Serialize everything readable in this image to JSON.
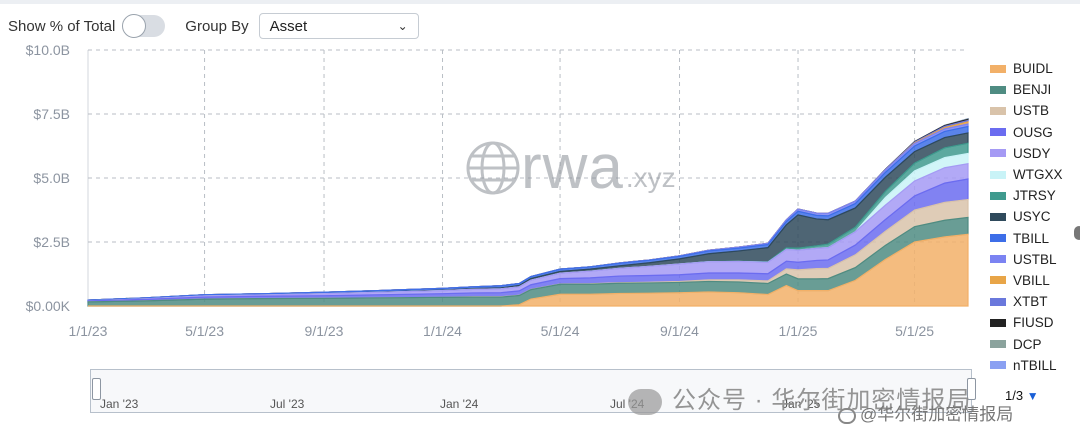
{
  "controls": {
    "show_pct_label": "Show % of Total",
    "show_pct_on": false,
    "group_by_label": "Group By",
    "group_by_value": "Asset"
  },
  "watermark": {
    "text": "rwa",
    "suffix": ".xyz"
  },
  "chart_data": {
    "type": "area",
    "stacked": true,
    "x": [
      "2023-01-01",
      "2023-03-01",
      "2023-05-01",
      "2023-07-01",
      "2023-09-01",
      "2023-11-01",
      "2024-01-01",
      "2024-02-01",
      "2024-03-01",
      "2024-03-20",
      "2024-04-01",
      "2024-05-01",
      "2024-06-01",
      "2024-07-01",
      "2024-08-01",
      "2024-09-01",
      "2024-10-01",
      "2024-11-01",
      "2024-12-01",
      "2024-12-20",
      "2025-01-01",
      "2025-01-20",
      "2025-02-01",
      "2025-03-01",
      "2025-04-01",
      "2025-05-01",
      "2025-06-01",
      "2025-06-25"
    ],
    "x_ticks": [
      "1/1/23",
      "5/1/23",
      "9/1/23",
      "1/1/24",
      "5/1/24",
      "9/1/24",
      "1/1/25",
      "5/1/25"
    ],
    "y_ticks": [
      "$0.00K",
      "$2.5B",
      "$5.0B",
      "$7.5B",
      "$10.0B"
    ],
    "ylim": [
      0,
      10000000000
    ],
    "grid": true,
    "legend_position": "right",
    "series": [
      {
        "name": "BUIDL",
        "color": "#f2b068",
        "values": [
          0,
          0,
          0,
          0,
          0,
          0,
          0,
          0,
          0,
          0.05,
          0.27,
          0.46,
          0.46,
          0.49,
          0.5,
          0.52,
          0.55,
          0.52,
          0.45,
          0.8,
          0.6,
          0.6,
          0.6,
          1.0,
          1.82,
          2.5,
          2.7,
          2.8
        ]
      },
      {
        "name": "BENJI",
        "color": "#4f8c82",
        "values": [
          0.16,
          0.2,
          0.27,
          0.29,
          0.3,
          0.32,
          0.34,
          0.35,
          0.35,
          0.36,
          0.37,
          0.39,
          0.39,
          0.4,
          0.4,
          0.4,
          0.41,
          0.42,
          0.43,
          0.45,
          0.46,
          0.46,
          0.47,
          0.5,
          0.55,
          0.6,
          0.65,
          0.66
        ]
      },
      {
        "name": "USTB",
        "color": "#d9c3aa",
        "values": [
          0,
          0,
          0,
          0,
          0,
          0,
          0,
          0.01,
          0.01,
          0.01,
          0.01,
          0.01,
          0.02,
          0.02,
          0.03,
          0.04,
          0.06,
          0.08,
          0.1,
          0.2,
          0.35,
          0.4,
          0.4,
          0.5,
          0.55,
          0.65,
          0.7,
          0.7
        ]
      },
      {
        "name": "OUSG",
        "color": "#6b6cf0",
        "values": [
          0.04,
          0.06,
          0.08,
          0.09,
          0.1,
          0.12,
          0.14,
          0.15,
          0.16,
          0.17,
          0.18,
          0.21,
          0.23,
          0.26,
          0.26,
          0.26,
          0.27,
          0.27,
          0.28,
          0.3,
          0.3,
          0.32,
          0.33,
          0.38,
          0.46,
          0.55,
          0.75,
          0.8
        ]
      },
      {
        "name": "USDY",
        "color": "#a59af4",
        "values": [
          0,
          0.02,
          0.04,
          0.05,
          0.08,
          0.1,
          0.12,
          0.14,
          0.15,
          0.16,
          0.18,
          0.21,
          0.26,
          0.3,
          0.36,
          0.42,
          0.44,
          0.45,
          0.45,
          0.46,
          0.47,
          0.47,
          0.48,
          0.52,
          0.56,
          0.58,
          0.6,
          0.6
        ]
      },
      {
        "name": "WTGXX",
        "color": "#c9f3f7",
        "values": [
          0,
          0,
          0,
          0,
          0,
          0,
          0,
          0,
          0,
          0,
          0,
          0,
          0,
          0,
          0,
          0,
          0,
          0,
          0,
          0,
          0,
          0,
          0,
          0,
          0.3,
          0.4,
          0.4,
          0.4
        ]
      },
      {
        "name": "JTRSY",
        "color": "#3f9a8e",
        "values": [
          0,
          0,
          0,
          0,
          0,
          0,
          0,
          0,
          0,
          0,
          0,
          0,
          0,
          0,
          0,
          0,
          0.01,
          0.01,
          0.02,
          0.06,
          0.08,
          0.1,
          0.14,
          0.18,
          0.24,
          0.3,
          0.38,
          0.4
        ]
      },
      {
        "name": "USYC",
        "color": "#2f4a5c",
        "values": [
          0,
          0,
          0,
          0,
          0,
          0.01,
          0.02,
          0.03,
          0.04,
          0.05,
          0.06,
          0.07,
          0.08,
          0.1,
          0.14,
          0.2,
          0.3,
          0.4,
          0.55,
          0.9,
          1.3,
          1.05,
          0.95,
          0.75,
          0.55,
          0.45,
          0.4,
          0.4
        ]
      },
      {
        "name": "TBILL",
        "color": "#3d6ee8",
        "values": [
          0.03,
          0.04,
          0.05,
          0.05,
          0.06,
          0.06,
          0.07,
          0.07,
          0.08,
          0.08,
          0.08,
          0.09,
          0.09,
          0.1,
          0.1,
          0.1,
          0.11,
          0.11,
          0.12,
          0.13,
          0.14,
          0.14,
          0.15,
          0.17,
          0.19,
          0.22,
          0.24,
          0.25
        ]
      },
      {
        "name": "USTBL",
        "color": "#7b83f2",
        "values": [
          0,
          0,
          0,
          0,
          0,
          0,
          0,
          0,
          0,
          0,
          0,
          0,
          0,
          0.01,
          0.01,
          0.02,
          0.03,
          0.04,
          0.05,
          0.07,
          0.09,
          0.09,
          0.1,
          0.1,
          0.1,
          0.1,
          0.1,
          0.1
        ]
      },
      {
        "name": "VBILL",
        "color": "#e8a548",
        "values": [
          0,
          0,
          0,
          0,
          0,
          0,
          0,
          0,
          0,
          0,
          0,
          0,
          0,
          0,
          0,
          0,
          0,
          0,
          0,
          0,
          0,
          0,
          0,
          0,
          0,
          0.02,
          0.05,
          0.08
        ]
      },
      {
        "name": "XTBT",
        "color": "#6a78dc",
        "values": [
          0,
          0,
          0,
          0,
          0,
          0,
          0,
          0,
          0,
          0,
          0,
          0,
          0,
          0,
          0,
          0,
          0,
          0,
          0,
          0,
          0,
          0,
          0,
          0,
          0.01,
          0.03,
          0.05,
          0.06
        ]
      },
      {
        "name": "FIUSD",
        "color": "#222222",
        "values": [
          0,
          0,
          0,
          0,
          0,
          0,
          0,
          0,
          0,
          0,
          0,
          0,
          0,
          0,
          0,
          0,
          0,
          0,
          0,
          0,
          0,
          0,
          0,
          0,
          0.01,
          0.02,
          0.03,
          0.04
        ]
      },
      {
        "name": "DCP",
        "color": "#8ba39d",
        "values": [
          0,
          0,
          0,
          0,
          0,
          0,
          0,
          0,
          0,
          0,
          0,
          0,
          0,
          0,
          0,
          0,
          0,
          0,
          0,
          0,
          0,
          0,
          0,
          0,
          0,
          0,
          0.01,
          0.02
        ]
      },
      {
        "name": "nTBILL",
        "color": "#8aa0f2",
        "values": [
          0,
          0,
          0,
          0,
          0,
          0,
          0,
          0,
          0,
          0,
          0,
          0,
          0,
          0,
          0,
          0,
          0,
          0,
          0,
          0,
          0,
          0,
          0,
          0,
          0,
          0,
          0,
          0.01
        ]
      }
    ],
    "values_unit": "billions USD"
  },
  "navigator": {
    "labels": [
      "Jan '23",
      "Jul '23",
      "Jan '24",
      "Jul '24",
      "Jan '25"
    ]
  },
  "pagination": {
    "text": "1/3",
    "arrow": "▼"
  },
  "overlay": {
    "wechat_text": "公众号 · 华尔街加密情报局",
    "weibo_text": "@华尔街加密情报局"
  }
}
